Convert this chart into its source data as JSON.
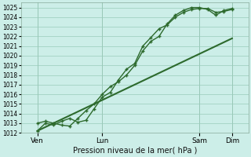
{
  "xlabel": "Pression niveau de la mer( hPa )",
  "bg_color": "#cceee8",
  "grid_color": "#99ccbb",
  "line_color": "#2d6a2d",
  "ylim": [
    1012,
    1025.5
  ],
  "yticks": [
    1012,
    1013,
    1014,
    1015,
    1016,
    1017,
    1018,
    1019,
    1020,
    1021,
    1022,
    1023,
    1024,
    1025
  ],
  "xtick_labels": [
    "Ven",
    "Lun",
    "Sam",
    "Dim"
  ],
  "xtick_positions": [
    1,
    3,
    6,
    7
  ],
  "xlim": [
    0.5,
    7.5
  ],
  "lines": [
    {
      "x": [
        1.0,
        1.25,
        1.5,
        1.75,
        2.0,
        2.25,
        2.5,
        2.75,
        3.0,
        3.25,
        3.5,
        3.75,
        4.0,
        4.25,
        4.5,
        4.75,
        5.0,
        5.25,
        5.5,
        5.75,
        6.0,
        6.25,
        6.5,
        6.75,
        7.0
      ],
      "y": [
        1012.2,
        1013.0,
        1012.8,
        1013.2,
        1013.5,
        1013.1,
        1013.3,
        1014.5,
        1015.7,
        1016.2,
        1017.5,
        1018.6,
        1019.2,
        1021.0,
        1021.9,
        1022.8,
        1023.2,
        1024.0,
        1024.5,
        1024.8,
        1024.9,
        1024.9,
        1024.5,
        1024.6,
        1024.8
      ],
      "lw": 1.0,
      "marker": "+"
    },
    {
      "x": [
        1.0,
        1.25,
        1.5,
        1.75,
        2.0,
        2.25,
        2.5,
        2.75,
        3.0,
        3.25,
        3.5,
        3.75,
        4.0,
        4.25,
        4.5,
        4.75,
        5.0,
        5.25,
        5.5,
        5.75,
        6.0,
        6.25,
        6.5,
        6.75,
        7.0
      ],
      "y": [
        1013.0,
        1013.2,
        1013.0,
        1012.8,
        1012.7,
        1013.5,
        1014.3,
        1015.0,
        1016.0,
        1016.8,
        1017.3,
        1018.0,
        1019.0,
        1020.5,
        1021.5,
        1022.0,
        1023.3,
        1024.2,
        1024.7,
        1025.0,
        1025.0,
        1024.8,
        1024.2,
        1024.7,
        1024.9
      ],
      "lw": 1.0,
      "marker": "+"
    },
    {
      "x": [
        1.0,
        7.0
      ],
      "y": [
        1012.2,
        1021.8
      ],
      "lw": 1.5,
      "marker": null
    }
  ]
}
